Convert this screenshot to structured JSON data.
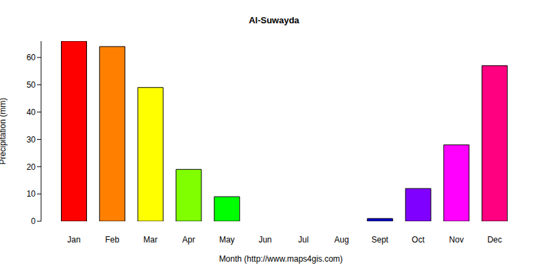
{
  "chart_data": {
    "type": "bar",
    "title": "Al-Suwayda",
    "x_label": "Month (http://www.maps4gis.com)",
    "y_label": "Precipitation (mm)",
    "categories": [
      "Jan",
      "Feb",
      "Mar",
      "Apr",
      "May",
      "Jun",
      "Jul",
      "Aug",
      "Sept",
      "Oct",
      "Nov",
      "Dec"
    ],
    "values": [
      66,
      64,
      49,
      19,
      9,
      0,
      0,
      0,
      1,
      12,
      28,
      57
    ],
    "colors": [
      "#ff0000",
      "#ff8000",
      "#ffff00",
      "#80ff00",
      "#00ff00",
      "#00ff80",
      "#00ffff",
      "#0080ff",
      "#0000cc",
      "#8000ff",
      "#ff00ff",
      "#ff0080"
    ],
    "ylim": [
      0,
      66
    ],
    "yticks": [
      0,
      10,
      20,
      30,
      40,
      50,
      60
    ],
    "grid": false
  }
}
